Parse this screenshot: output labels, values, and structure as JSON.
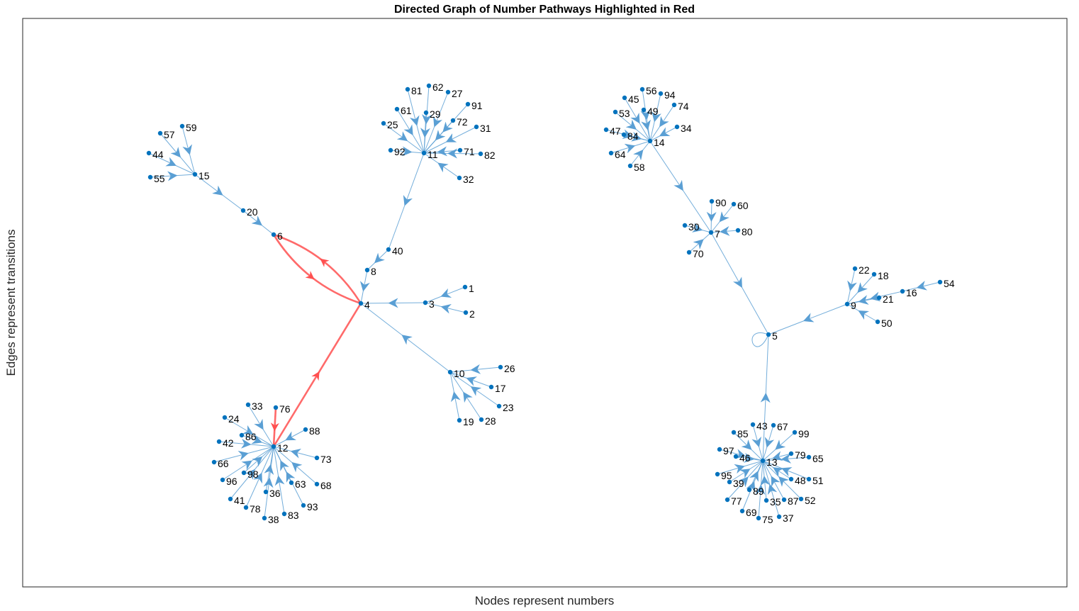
{
  "figure": {
    "title": "Directed Graph of Number Pathways Highlighted in Red",
    "xlabel": "Nodes represent numbers",
    "ylabel": "Edges represent transitions"
  },
  "colors": {
    "edge": "#5a9fd4",
    "node": "#0072bd",
    "highlight": "#ff5050",
    "axes": "#262626"
  },
  "graph": {
    "nodes": [
      "1",
      "2",
      "3",
      "4",
      "5",
      "6",
      "7",
      "8",
      "9",
      "10",
      "11",
      "12",
      "13",
      "14",
      "15",
      "16",
      "17",
      "18",
      "19",
      "20",
      "21",
      "22",
      "23",
      "24",
      "25",
      "26",
      "27",
      "28",
      "29",
      "30",
      "31",
      "32",
      "33",
      "34",
      "35",
      "36",
      "37",
      "38",
      "39",
      "40",
      "41",
      "42",
      "43",
      "44",
      "45",
      "46",
      "47",
      "48",
      "49",
      "50",
      "51",
      "52",
      "53",
      "54",
      "55",
      "56",
      "57",
      "58",
      "59",
      "60",
      "61",
      "62",
      "63",
      "64",
      "65",
      "66",
      "67",
      "68",
      "69",
      "70",
      "71",
      "72",
      "73",
      "74",
      "75",
      "76",
      "77",
      "78",
      "79",
      "80",
      "81",
      "82",
      "83",
      "84",
      "85",
      "86",
      "87",
      "88",
      "89",
      "90",
      "91",
      "92",
      "93",
      "94",
      "95",
      "96",
      "97",
      "98",
      "99"
    ],
    "edges": [
      [
        "1",
        "3"
      ],
      [
        "2",
        "3"
      ],
      [
        "3",
        "4"
      ],
      [
        "10",
        "4"
      ],
      [
        "26",
        "10"
      ],
      [
        "17",
        "10"
      ],
      [
        "23",
        "10"
      ],
      [
        "28",
        "10"
      ],
      [
        "19",
        "10"
      ],
      [
        "8",
        "4"
      ],
      [
        "40",
        "8"
      ],
      [
        "11",
        "40"
      ],
      [
        "81",
        "11"
      ],
      [
        "62",
        "11"
      ],
      [
        "27",
        "11"
      ],
      [
        "91",
        "11"
      ],
      [
        "61",
        "11"
      ],
      [
        "29",
        "11"
      ],
      [
        "72",
        "11"
      ],
      [
        "31",
        "11"
      ],
      [
        "25",
        "11"
      ],
      [
        "92",
        "11"
      ],
      [
        "71",
        "11"
      ],
      [
        "82",
        "11"
      ],
      [
        "32",
        "11"
      ],
      [
        "4",
        "6"
      ],
      [
        "6",
        "4"
      ],
      [
        "12",
        "4"
      ],
      [
        "76",
        "12"
      ],
      [
        "15",
        "20"
      ],
      [
        "20",
        "6"
      ],
      [
        "59",
        "15"
      ],
      [
        "57",
        "15"
      ],
      [
        "44",
        "15"
      ],
      [
        "55",
        "15"
      ],
      [
        "33",
        "12"
      ],
      [
        "24",
        "12"
      ],
      [
        "86",
        "12"
      ],
      [
        "42",
        "12"
      ],
      [
        "66",
        "12"
      ],
      [
        "98",
        "12"
      ],
      [
        "96",
        "12"
      ],
      [
        "41",
        "12"
      ],
      [
        "78",
        "12"
      ],
      [
        "38",
        "12"
      ],
      [
        "36",
        "12"
      ],
      [
        "83",
        "12"
      ],
      [
        "63",
        "12"
      ],
      [
        "93",
        "12"
      ],
      [
        "68",
        "12"
      ],
      [
        "73",
        "12"
      ],
      [
        "88",
        "12"
      ],
      [
        "14",
        "7"
      ],
      [
        "56",
        "14"
      ],
      [
        "94",
        "14"
      ],
      [
        "45",
        "14"
      ],
      [
        "49",
        "14"
      ],
      [
        "74",
        "14"
      ],
      [
        "53",
        "14"
      ],
      [
        "34",
        "14"
      ],
      [
        "47",
        "14"
      ],
      [
        "84",
        "14"
      ],
      [
        "64",
        "14"
      ],
      [
        "58",
        "14"
      ],
      [
        "7",
        "5"
      ],
      [
        "90",
        "7"
      ],
      [
        "60",
        "7"
      ],
      [
        "30",
        "7"
      ],
      [
        "80",
        "7"
      ],
      [
        "70",
        "7"
      ],
      [
        "5",
        "5"
      ],
      [
        "9",
        "5"
      ],
      [
        "22",
        "9"
      ],
      [
        "18",
        "9"
      ],
      [
        "16",
        "9"
      ],
      [
        "54",
        "16"
      ],
      [
        "21",
        "9"
      ],
      [
        "50",
        "9"
      ],
      [
        "13",
        "5"
      ],
      [
        "43",
        "13"
      ],
      [
        "67",
        "13"
      ],
      [
        "85",
        "13"
      ],
      [
        "99",
        "13"
      ],
      [
        "97",
        "13"
      ],
      [
        "46",
        "13"
      ],
      [
        "79",
        "13"
      ],
      [
        "65",
        "13"
      ],
      [
        "95",
        "13"
      ],
      [
        "39",
        "13"
      ],
      [
        "48",
        "13"
      ],
      [
        "51",
        "13"
      ],
      [
        "89",
        "13"
      ],
      [
        "77",
        "13"
      ],
      [
        "35",
        "13"
      ],
      [
        "87",
        "13"
      ],
      [
        "52",
        "13"
      ],
      [
        "69",
        "13"
      ],
      [
        "75",
        "13"
      ],
      [
        "37",
        "13"
      ]
    ],
    "highlighted_edges": [
      [
        "76",
        "12"
      ],
      [
        "12",
        "4"
      ],
      [
        "4",
        "6"
      ],
      [
        "6",
        "4"
      ]
    ]
  }
}
